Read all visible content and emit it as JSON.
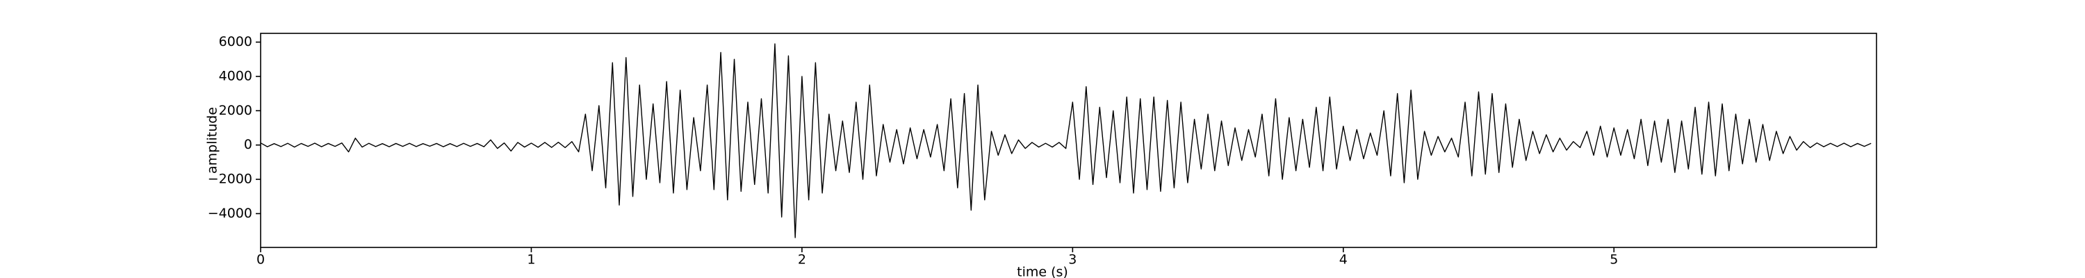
{
  "chart_data": {
    "type": "line",
    "xlabel": "time (s)",
    "ylabel": "amplitude",
    "xlim": [
      0,
      5.97
    ],
    "ylim": [
      -5970,
      6510
    ],
    "xticks": [
      0,
      1,
      2,
      3,
      4,
      5
    ],
    "yticks": [
      {
        "value": -4000,
        "label": "−4000"
      },
      {
        "value": -2000,
        "label": "−2000"
      },
      0,
      2000,
      4000,
      6000
    ],
    "grid": false,
    "series": [
      {
        "color": "#000000",
        "x": [
          0,
          0.025,
          0.05,
          0.075,
          0.1,
          0.125,
          0.15,
          0.175,
          0.2,
          0.225,
          0.25,
          0.275,
          0.3,
          0.325,
          0.35,
          0.375,
          0.4,
          0.425,
          0.45,
          0.475,
          0.5,
          0.525,
          0.55,
          0.575,
          0.6,
          0.625,
          0.65,
          0.675,
          0.7,
          0.725,
          0.75,
          0.775,
          0.8,
          0.825,
          0.85,
          0.875,
          0.9,
          0.925,
          0.95,
          0.975,
          1,
          1.025,
          1.05,
          1.075,
          1.1,
          1.125,
          1.15,
          1.175,
          1.2,
          1.225,
          1.25,
          1.275,
          1.3,
          1.325,
          1.35,
          1.375,
          1.4,
          1.425,
          1.45,
          1.475,
          1.5,
          1.525,
          1.55,
          1.575,
          1.6,
          1.625,
          1.65,
          1.675,
          1.7,
          1.725,
          1.75,
          1.775,
          1.8,
          1.825,
          1.85,
          1.875,
          1.9,
          1.925,
          1.95,
          1.975,
          2,
          2.025,
          2.05,
          2.075,
          2.1,
          2.125,
          2.15,
          2.175,
          2.2,
          2.225,
          2.25,
          2.275,
          2.3,
          2.325,
          2.35,
          2.375,
          2.4,
          2.425,
          2.45,
          2.475,
          2.5,
          2.525,
          2.55,
          2.575,
          2.6,
          2.625,
          2.65,
          2.675,
          2.7,
          2.725,
          2.75,
          2.775,
          2.8,
          2.825,
          2.85,
          2.875,
          2.9,
          2.925,
          2.95,
          2.975,
          3,
          3.025,
          3.05,
          3.075,
          3.1,
          3.125,
          3.15,
          3.175,
          3.2,
          3.225,
          3.25,
          3.275,
          3.3,
          3.325,
          3.35,
          3.375,
          3.4,
          3.425,
          3.45,
          3.475,
          3.5,
          3.525,
          3.55,
          3.575,
          3.6,
          3.625,
          3.65,
          3.675,
          3.7,
          3.725,
          3.75,
          3.775,
          3.8,
          3.825,
          3.85,
          3.875,
          3.9,
          3.925,
          3.95,
          3.975,
          4,
          4.025,
          4.05,
          4.075,
          4.1,
          4.125,
          4.15,
          4.175,
          4.2,
          4.225,
          4.25,
          4.275,
          4.3,
          4.325,
          4.35,
          4.375,
          4.4,
          4.425,
          4.45,
          4.475,
          4.5,
          4.525,
          4.55,
          4.575,
          4.6,
          4.625,
          4.65,
          4.675,
          4.7,
          4.725,
          4.75,
          4.775,
          4.8,
          4.825,
          4.85,
          4.875,
          4.9,
          4.925,
          4.95,
          4.975,
          5,
          5.025,
          5.05,
          5.075,
          5.1,
          5.125,
          5.15,
          5.175,
          5.2,
          5.225,
          5.25,
          5.275,
          5.3,
          5.325,
          5.35,
          5.375,
          5.4,
          5.425,
          5.45,
          5.475,
          5.5,
          5.525,
          5.55,
          5.575,
          5.6,
          5.625,
          5.65,
          5.675,
          5.7,
          5.725,
          5.75,
          5.775,
          5.8,
          5.825,
          5.85,
          5.875,
          5.9,
          5.925,
          5.95
        ],
        "values": [
          120,
          -100,
          80,
          -90,
          100,
          -120,
          90,
          -80,
          110,
          -100,
          90,
          -80,
          120,
          -400,
          400,
          -120,
          100,
          -90,
          80,
          -100,
          90,
          -80,
          100,
          -90,
          80,
          -70,
          90,
          -100,
          80,
          -90,
          100,
          -80,
          90,
          -100,
          300,
          -200,
          120,
          -350,
          150,
          -120,
          110,
          -130,
          150,
          -140,
          160,
          -150,
          200,
          -400,
          1800,
          -1500,
          2300,
          -2500,
          4800,
          -3500,
          5100,
          -3000,
          3500,
          -2000,
          2400,
          -2200,
          3700,
          -2800,
          3200,
          -2600,
          1600,
          -1500,
          3500,
          -2600,
          5400,
          -3200,
          5000,
          -2700,
          2500,
          -2300,
          2700,
          -2800,
          5900,
          -4200,
          5200,
          -5400,
          4000,
          -3200,
          4800,
          -2800,
          1800,
          -1500,
          1400,
          -1600,
          2500,
          -2000,
          3500,
          -1800,
          1200,
          -1000,
          900,
          -1100,
          1000,
          -800,
          900,
          -700,
          1200,
          -1500,
          2700,
          -2500,
          3000,
          -3800,
          3500,
          -3200,
          800,
          -600,
          600,
          -500,
          300,
          -200,
          150,
          -120,
          100,
          -120,
          150,
          -200,
          2500,
          -2000,
          3400,
          -2300,
          2200,
          -1900,
          2000,
          -2200,
          2800,
          -2800,
          2700,
          -2600,
          2800,
          -2700,
          2600,
          -2500,
          2500,
          -2200,
          1500,
          -1400,
          1800,
          -1500,
          1400,
          -1200,
          1000,
          -900,
          900,
          -700,
          1800,
          -1800,
          2700,
          -2000,
          1600,
          -1500,
          1500,
          -1300,
          2200,
          -1500,
          2800,
          -1400,
          1100,
          -900,
          900,
          -800,
          700,
          -600,
          2000,
          -1800,
          3000,
          -2200,
          3200,
          -2000,
          800,
          -600,
          500,
          -400,
          400,
          -700,
          2500,
          -1800,
          3100,
          -1700,
          3000,
          -1600,
          2400,
          -1300,
          1500,
          -900,
          800,
          -500,
          600,
          -400,
          400,
          -300,
          200,
          -150,
          800,
          -600,
          1100,
          -700,
          1000,
          -600,
          900,
          -800,
          1500,
          -1200,
          1400,
          -1000,
          1500,
          -1600,
          1400,
          -1400,
          2200,
          -1700,
          2500,
          -1800,
          2400,
          -1500,
          1800,
          -1100,
          1500,
          -1000,
          1200,
          -900,
          800,
          -500,
          500,
          -300,
          200,
          -150,
          120,
          -100,
          100,
          -90,
          110,
          -100,
          90,
          -80,
          100
        ]
      }
    ]
  }
}
